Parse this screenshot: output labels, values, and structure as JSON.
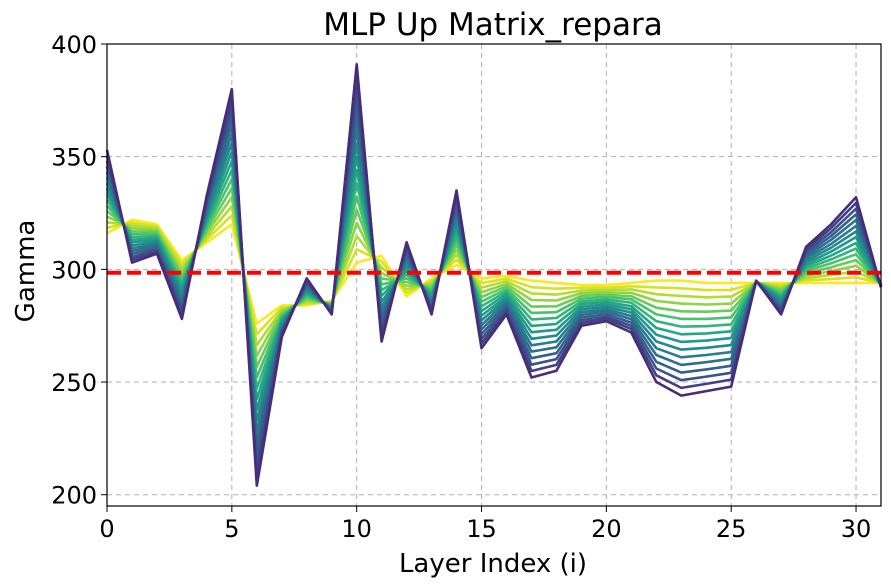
{
  "chart_data": {
    "type": "line",
    "title": "MLP Up Matrix_repara",
    "xlabel": "Layer Index (i)",
    "ylabel": "Gamma",
    "xlim": [
      0,
      31
    ],
    "ylim": [
      195,
      400
    ],
    "xticks": [
      "0",
      "5",
      "10",
      "15",
      "20",
      "25",
      "30"
    ],
    "yticks": [
      "200",
      "250",
      "300",
      "350",
      "400"
    ],
    "grid": true,
    "grid_style": "dashed",
    "reference_line": {
      "y": 298.5,
      "color": "#ff0000",
      "style": "dashed"
    },
    "colormap": "viridis (yellow to purple)",
    "start_series": [
      316,
      322,
      320,
      304,
      312,
      320,
      276,
      284,
      284,
      286,
      303,
      306,
      288,
      296,
      302,
      296,
      297,
      295,
      294,
      293,
      293,
      294,
      295,
      295,
      294,
      294,
      294,
      294,
      294,
      294,
      294,
      294
    ],
    "end_series": [
      353,
      303,
      307,
      278,
      333,
      380,
      204,
      270,
      296,
      280,
      391,
      268,
      312,
      280,
      335,
      265,
      280,
      252,
      255,
      275,
      277,
      272,
      250,
      244,
      246,
      248,
      295,
      280,
      310,
      320,
      332,
      292
    ],
    "series_count": 16,
    "series": []
  }
}
